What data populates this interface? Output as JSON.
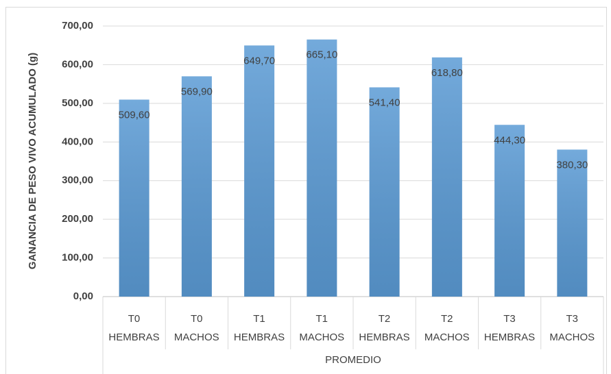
{
  "chart_data": {
    "type": "bar",
    "y_axis_label": "GANANCIA DE PESO VIVO ACUMULADO (g)",
    "x_axis_label": "PROMEDIO",
    "categories": [
      "T0 HEMBRAS",
      "T0 MACHOS",
      "T1 HEMBRAS",
      "T1 MACHOS",
      "T2 HEMBRAS",
      "T2 MACHOS",
      "T3 HEMBRAS",
      "T3 MACHOS"
    ],
    "values": [
      509.6,
      569.9,
      649.7,
      665.1,
      541.4,
      618.8,
      444.3,
      380.3
    ],
    "value_labels": [
      "509,60",
      "569,90",
      "649,70",
      "665,10",
      "541,40",
      "618,80",
      "444,30",
      "380,30"
    ],
    "color": "#5b9bd5",
    "ylim": [
      0,
      700
    ],
    "yticks": [
      {
        "value": 0,
        "label": "0,00"
      },
      {
        "value": 100,
        "label": "100,00"
      },
      {
        "value": 200,
        "label": "200,00"
      },
      {
        "value": 300,
        "label": "300,00"
      },
      {
        "value": 400,
        "label": "400,00"
      },
      {
        "value": 500,
        "label": "500,00"
      },
      {
        "value": 600,
        "label": "600,00"
      },
      {
        "value": 700,
        "label": "700,00"
      }
    ],
    "grid": true
  }
}
